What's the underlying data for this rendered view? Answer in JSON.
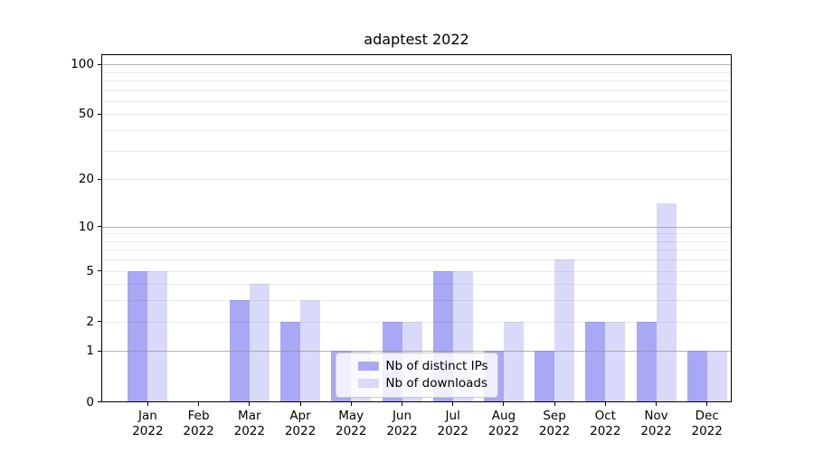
{
  "chart_data": {
    "type": "bar",
    "title": "adaptest 2022",
    "categories": [
      "Jan",
      "Feb",
      "Mar",
      "Apr",
      "May",
      "Jun",
      "Jul",
      "Aug",
      "Sep",
      "Oct",
      "Nov",
      "Dec"
    ],
    "tick_year": "2022",
    "series": [
      {
        "name": "Nb of distinct IPs",
        "color": "#a8a8f5",
        "values": [
          5,
          0,
          3,
          2,
          1,
          2,
          5,
          1,
          1,
          2,
          2,
          1
        ]
      },
      {
        "name": "Nb of downloads",
        "color": "#d9d9f9",
        "values": [
          5,
          0,
          4,
          3,
          1,
          2,
          5,
          2,
          6,
          2,
          14,
          1
        ]
      }
    ],
    "xlabel": "",
    "ylabel": "",
    "y_scale": "log1p",
    "ylim": [
      0,
      115.6
    ],
    "y_tick_labels": [
      0,
      1,
      2,
      5,
      10,
      20,
      50,
      100
    ],
    "major_gridlines": [
      1,
      10,
      100
    ],
    "minor_gridlines": [
      2,
      3,
      4,
      5,
      6,
      7,
      8,
      9,
      20,
      30,
      40,
      50,
      60,
      70,
      80,
      90
    ],
    "grid": true,
    "legend_position": "lower center",
    "colors": {
      "major_grid": "rgba(140,140,140,0.65)",
      "minor_grid": "rgba(0,0,0,0.08)",
      "axis": "#000000",
      "background": "#ffffff"
    }
  }
}
